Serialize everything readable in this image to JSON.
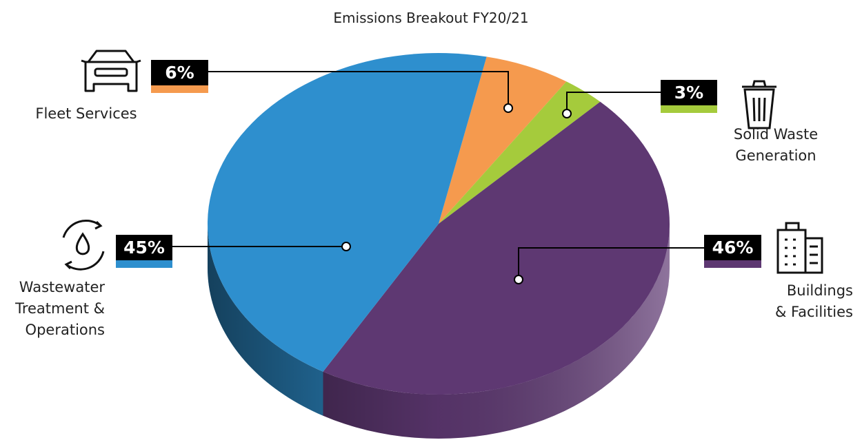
{
  "chart_data": {
    "type": "pie",
    "title": "Emissions Breakout FY20/21",
    "categories": [
      "Fleet Services",
      "Solid Waste\nGeneration",
      "Buildings\n& Facilities",
      "Wastewater\nTreatment &\nOperations"
    ],
    "values": [
      6,
      3,
      46,
      45
    ],
    "value_labels": [
      "6%",
      "3%",
      "46%",
      "45%"
    ],
    "colors": [
      "#f59a4e",
      "#a5cb3c",
      "#5e3872",
      "#2e8fce"
    ]
  }
}
